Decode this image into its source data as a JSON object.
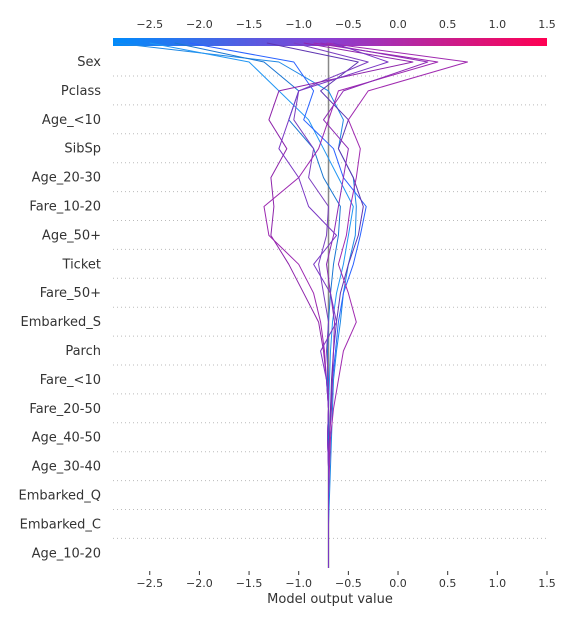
{
  "chart_data": {
    "type": "line",
    "subtype": "decision-plot",
    "title": "",
    "xlabel": "Model output value",
    "ylabel": "",
    "xlim": [
      -2.87,
      1.5
    ],
    "x_ticks": [
      -2.5,
      -2.0,
      -1.5,
      -1.0,
      -0.5,
      0.0,
      0.5,
      1.0,
      1.5
    ],
    "x_tick_labels": [
      "−2.5",
      "−2.0",
      "−1.5",
      "−1.0",
      "−0.5",
      "0.0",
      "0.5",
      "1.0",
      "1.5"
    ],
    "base_value": -0.7,
    "features": [
      "Sex",
      "Pclass",
      "Age_<10",
      "SibSp",
      "Age_20-30",
      "Fare_10-20",
      "Age_50+",
      "Ticket",
      "Fare_50+",
      "Embarked_S",
      "Parch",
      "Fare_<10",
      "Fare_20-50",
      "Age_40-50",
      "Age_30-40",
      "Embarked_Q",
      "Embarked_C",
      "Age_10-20"
    ],
    "colormap": {
      "low": "#008bfb",
      "mid": "#8a3fd1",
      "high": "#ff0052"
    },
    "grid": "dotted-rows",
    "series": [
      {
        "color": "#1e88e5",
        "path": [
          -2.85,
          -1.2,
          -0.7,
          -0.55,
          -0.6,
          -0.45,
          -0.42,
          -0.43,
          -0.5,
          -0.55,
          -0.58,
          -0.62,
          -0.65,
          -0.66,
          -0.67,
          -0.68,
          -0.69,
          -0.7,
          -0.7
        ]
      },
      {
        "color": "#2196f3",
        "path": [
          -2.5,
          -1.5,
          -1.2,
          -0.9,
          -0.75,
          -0.6,
          -0.45,
          -0.5,
          -0.55,
          -0.62,
          -0.66,
          -0.68,
          -0.69,
          -0.7,
          -0.7,
          -0.7,
          -0.7,
          -0.7,
          -0.7
        ]
      },
      {
        "color": "#1976d2",
        "path": [
          -2.25,
          -1.35,
          -1.0,
          -1.1,
          -0.85,
          -0.75,
          -0.58,
          -0.6,
          -0.65,
          -0.68,
          -0.7,
          -0.71,
          -0.71,
          -0.7,
          -0.7,
          -0.7,
          -0.7,
          -0.7,
          -0.7
        ]
      },
      {
        "color": "#2962ff",
        "path": [
          -2.1,
          -1.05,
          -0.85,
          -0.95,
          -0.65,
          -0.55,
          -0.32,
          -0.38,
          -0.45,
          -0.55,
          -0.6,
          -0.63,
          -0.66,
          -0.68,
          -0.69,
          -0.7,
          -0.7,
          -0.7,
          -0.7
        ]
      },
      {
        "color": "#5e35b1",
        "path": [
          -1.32,
          -0.4,
          -0.78,
          -0.5,
          -0.6,
          -0.45,
          -0.35,
          -0.4,
          -0.5,
          -0.58,
          -0.62,
          -0.65,
          -0.67,
          -0.68,
          -0.69,
          -0.7,
          -0.7,
          -0.7,
          -0.7
        ]
      },
      {
        "color": "#7b3fc0",
        "path": [
          -1.05,
          -0.3,
          -1.0,
          -1.05,
          -0.85,
          -0.9,
          -0.7,
          -0.72,
          -0.8,
          -0.75,
          -0.7,
          -0.72,
          -0.7,
          -0.7,
          -0.71,
          -0.7,
          -0.7,
          -0.7,
          -0.7
        ]
      },
      {
        "color": "#8e24aa",
        "path": [
          -0.95,
          0.15,
          -1.2,
          -1.3,
          -1.12,
          -1.28,
          -1.25,
          -1.28,
          -1.1,
          -0.95,
          -0.8,
          -0.75,
          -0.72,
          -0.7,
          -0.71,
          -0.7,
          -0.7,
          -0.7,
          -0.7
        ]
      },
      {
        "color": "#9c27b0",
        "path": [
          -0.85,
          0.4,
          -0.6,
          -0.7,
          -0.8,
          -1.0,
          -1.35,
          -1.3,
          -1.0,
          -0.85,
          -0.78,
          -0.74,
          -0.72,
          -0.7,
          -0.71,
          -0.7,
          -0.7,
          -0.7,
          -0.7
        ]
      },
      {
        "color": "#8e2ab5",
        "path": [
          -0.78,
          0.3,
          -0.55,
          -0.75,
          -0.5,
          -0.55,
          -0.6,
          -0.65,
          -0.72,
          -0.68,
          -0.64,
          -0.65,
          -0.66,
          -0.67,
          -0.69,
          -0.7,
          -0.7,
          -0.7,
          -0.7
        ]
      },
      {
        "color": "#a02ab0",
        "path": [
          -0.72,
          0.7,
          -0.3,
          -0.5,
          -0.38,
          -0.42,
          -0.48,
          -0.52,
          -0.6,
          -0.5,
          -0.42,
          -0.55,
          -0.6,
          -0.65,
          -0.68,
          -0.69,
          -0.7,
          -0.7,
          -0.7
        ]
      },
      {
        "color": "#7a37c4",
        "path": [
          -0.65,
          -0.1,
          -1.0,
          -1.1,
          -1.2,
          -1.0,
          -0.9,
          -0.62,
          -0.85,
          -0.68,
          -0.62,
          -0.78,
          -0.72,
          -0.7,
          -0.71,
          -0.7,
          -0.7,
          -0.7,
          -0.7
        ]
      }
    ]
  }
}
